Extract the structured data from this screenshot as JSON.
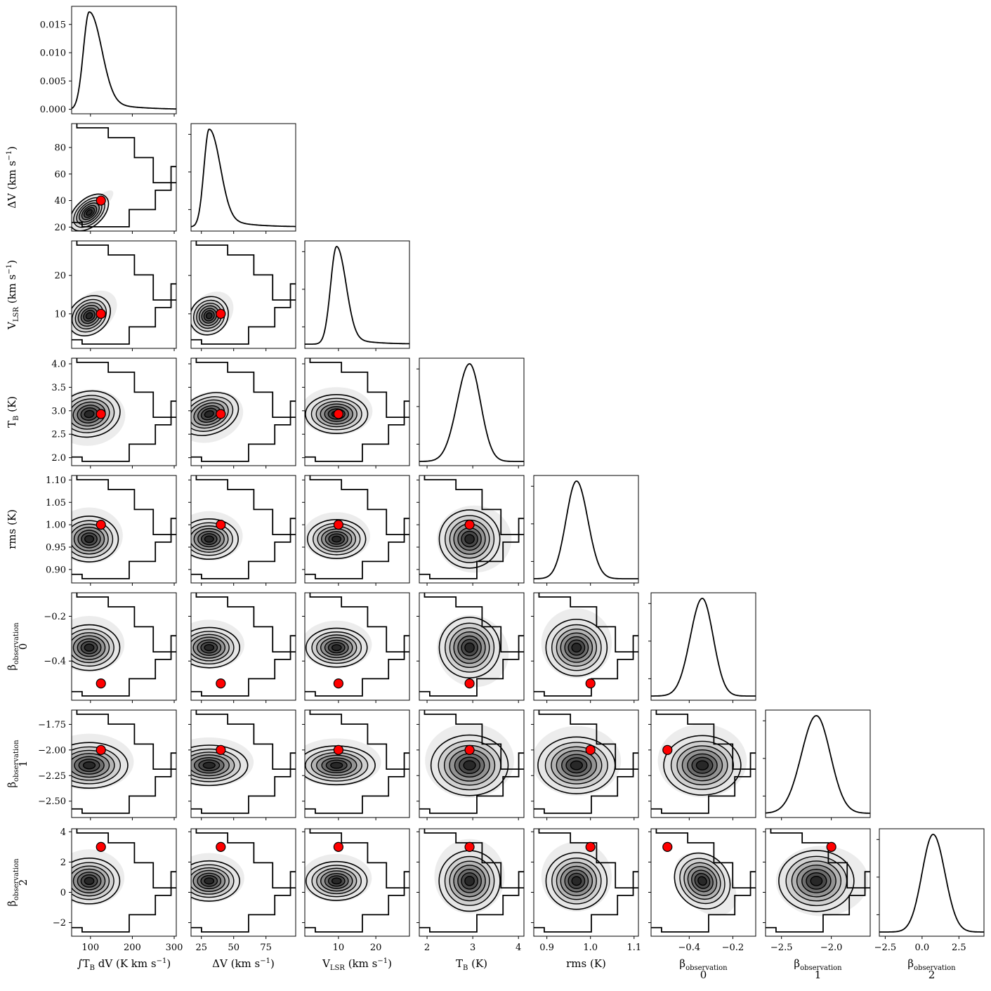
{
  "chart_data": {
    "type": "corner",
    "marker_color": "#ff0000",
    "line_color": "#000000",
    "parameters": [
      {
        "key": "itv",
        "label": "∫T_B dV (K km s⁻¹)",
        "label_main": "∫T",
        "label_sub": "B",
        "label_rest": " dV (K km s",
        "label_sup": "−1",
        "label_end": ")",
        "range": [
          55,
          305
        ],
        "ticks": [
          100,
          200,
          300
        ],
        "tick_labels": [
          "100",
          "200",
          "300"
        ],
        "truth": 125
      },
      {
        "key": "dv",
        "label": "ΔV (km s⁻¹)",
        "label_main": "ΔV",
        "label_sub": "",
        "label_rest": " (km s",
        "label_sup": "−1",
        "label_end": ")",
        "range": [
          17,
          98
        ],
        "ticks": [
          25,
          50,
          75
        ],
        "tick_labels": [
          "25",
          "50",
          "75"
        ],
        "truth": 40
      },
      {
        "key": "vlsr",
        "label": "V_LSR (km s⁻¹)",
        "label_main": "V",
        "label_sub": "LSR",
        "label_rest": " (km s",
        "label_sup": "−1",
        "label_end": ")",
        "range": [
          1,
          29
        ],
        "ticks": [
          10,
          20
        ],
        "tick_labels": [
          "10",
          "20"
        ],
        "truth": 10
      },
      {
        "key": "tb",
        "label": "T_B (K)",
        "label_main": "T",
        "label_sub": "B",
        "label_rest": " (K)",
        "label_sup": "",
        "label_end": "",
        "range": [
          1.83,
          4.12
        ],
        "ticks": [
          2,
          3,
          4
        ],
        "tick_labels": [
          "2",
          "3",
          "4"
        ],
        "truth": 2.93
      },
      {
        "key": "rms",
        "label": "rms (K)",
        "label_main": "rms (K)",
        "label_sub": "",
        "label_rest": "",
        "label_sup": "",
        "label_end": "",
        "range": [
          0.87,
          1.11
        ],
        "ticks": [
          0.9,
          1.0,
          1.1
        ],
        "tick_labels": [
          "0.9",
          "1.0",
          "1.1"
        ],
        "truth": 1.0
      },
      {
        "key": "b0",
        "label": "β_observation 0",
        "label_main": "β",
        "label_sub": "observation",
        "label_rest": "",
        "label_sup": "",
        "label_end": "",
        "label_index": "0",
        "range": [
          -0.575,
          -0.095
        ],
        "ticks": [
          -0.4,
          -0.2
        ],
        "tick_labels": [
          "−0.4",
          "−0.2"
        ],
        "truth": -0.5
      },
      {
        "key": "b1",
        "label": "β_observation 1",
        "label_main": "β",
        "label_sub": "observation",
        "label_rest": "",
        "label_sup": "",
        "label_end": "",
        "label_index": "1",
        "range": [
          -2.66,
          -1.61
        ],
        "ticks": [
          -2.5,
          -2.0
        ],
        "tick_labels": [
          "−2.5",
          "−2.0"
        ],
        "truth": -2.0
      },
      {
        "key": "b2",
        "label": "β_observation 2",
        "label_main": "β",
        "label_sub": "observation",
        "label_rest": "",
        "label_sup": "",
        "label_end": "",
        "label_index": "2",
        "range": [
          -2.9,
          4.2
        ],
        "ticks": [
          -2.5,
          0.0,
          2.5
        ],
        "tick_labels": [
          "−2.5",
          "0.0",
          "2.5"
        ],
        "truth": 3
      }
    ],
    "y_ticks": {
      "itv": {
        "range": [
          -0.0008,
          0.0182
        ],
        "ticks": [
          0.0,
          0.005,
          0.01,
          0.015
        ],
        "tick_labels": [
          "0.000",
          "0.005",
          "0.010",
          "0.015"
        ]
      },
      "dv": {
        "ticks": [
          20,
          40,
          60,
          80
        ],
        "tick_labels": [
          "20",
          "40",
          "60",
          "80"
        ]
      },
      "vlsr": {
        "ticks": [
          10,
          20
        ],
        "tick_labels": [
          "10",
          "20"
        ]
      },
      "tb": {
        "ticks": [
          2.0,
          2.5,
          3.0,
          3.5,
          4.0
        ],
        "tick_labels": [
          "2.0",
          "2.5",
          "3.0",
          "3.5",
          "4.0"
        ]
      },
      "rms": {
        "ticks": [
          0.9,
          0.95,
          1.0,
          1.05,
          1.1
        ],
        "tick_labels": [
          "0.90",
          "0.95",
          "1.00",
          "1.05",
          "1.10"
        ]
      },
      "b0": {
        "ticks": [
          -0.4,
          -0.2
        ],
        "tick_labels": [
          "−0.4",
          "−0.2"
        ]
      },
      "b1": {
        "ticks": [
          -2.5,
          -2.25,
          -2.0,
          -1.75
        ],
        "tick_labels": [
          "−2.50",
          "−2.25",
          "−2.00",
          "−1.75"
        ]
      },
      "b2": {
        "ticks": [
          -2,
          0,
          2,
          4
        ],
        "tick_labels": [
          "−2",
          "0",
          "2",
          "4"
        ]
      }
    },
    "posterior": [
      {
        "key": "itv",
        "peak": 97,
        "sigma_lo": 14,
        "sigma_hi": 28,
        "tail_weight": 0.12,
        "tail_scale": 70
      },
      {
        "key": "dv",
        "peak": 31,
        "sigma_lo": 4,
        "sigma_hi": 8,
        "tail_weight": 0.15,
        "tail_scale": 18
      },
      {
        "key": "vlsr",
        "peak": 9.5,
        "sigma_lo": 1.6,
        "sigma_hi": 2.4,
        "tail_weight": 0.1,
        "tail_scale": 6
      },
      {
        "key": "tb",
        "peak": 2.93,
        "sigma_lo": 0.27,
        "sigma_hi": 0.24,
        "tail_weight": 0,
        "tail_scale": 1
      },
      {
        "key": "rms",
        "peak": 0.968,
        "sigma_lo": 0.024,
        "sigma_hi": 0.026,
        "tail_weight": 0,
        "tail_scale": 1
      },
      {
        "key": "b0",
        "peak": -0.34,
        "sigma_lo": 0.055,
        "sigma_hi": 0.05,
        "tail_weight": 0,
        "tail_scale": 1
      },
      {
        "key": "b1",
        "peak": -2.15,
        "sigma_lo": 0.15,
        "sigma_hi": 0.14,
        "tail_weight": 0,
        "tail_scale": 1
      },
      {
        "key": "b2",
        "peak": 0.75,
        "sigma_lo": 0.75,
        "sigma_hi": 0.8,
        "tail_weight": 0,
        "tail_scale": 1
      }
    ],
    "correlations": [
      {
        "pair": [
          "itv",
          "dv"
        ],
        "rho": 0.97
      },
      {
        "pair": [
          "itv",
          "vlsr"
        ],
        "rho": 0.6
      },
      {
        "pair": [
          "dv",
          "vlsr"
        ],
        "rho": 0.6
      },
      {
        "pair": [
          "itv",
          "tb"
        ],
        "rho": -0.1
      },
      {
        "pair": [
          "dv",
          "tb"
        ],
        "rho": -0.35
      },
      {
        "pair": [
          "tb",
          "b0"
        ],
        "rho": -0.2
      },
      {
        "pair": [
          "b0",
          "b2"
        ],
        "rho": -0.75
      }
    ]
  }
}
